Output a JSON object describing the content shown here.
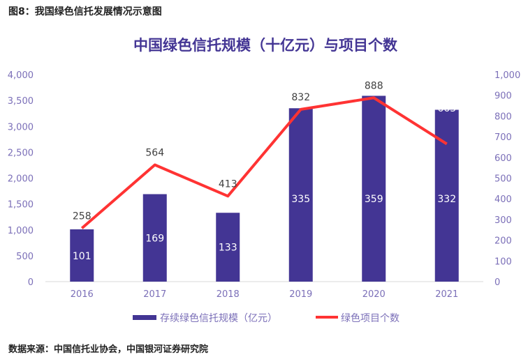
{
  "figure_title": "图8：我国绿色信托发展情况示意图",
  "source": "数据来源：中国信托业协会，中国银河证券研究院",
  "chart_data": {
    "type": "bar+line",
    "title": "中国绿色信托规模（十亿元）与项目个数",
    "categories": [
      "2016",
      "2017",
      "2018",
      "2019",
      "2020",
      "2021"
    ],
    "series": [
      {
        "name": "存续绿色信托规模（亿元）",
        "type": "bar",
        "axis": "left",
        "values": [
          1010,
          1690,
          1330,
          3350,
          3590,
          3320
        ],
        "labels": [
          "101",
          "169",
          "133",
          "335",
          "359",
          "332"
        ],
        "color": "#433594"
      },
      {
        "name": "绿色项目个数",
        "type": "line",
        "axis": "right",
        "values": [
          258,
          564,
          413,
          832,
          888,
          665
        ],
        "labels": [
          "258",
          "564",
          "413",
          "832",
          "888",
          "665"
        ],
        "color": "#ff3333"
      }
    ],
    "y_left": {
      "range": [
        0,
        4000
      ],
      "ticks": [
        "0",
        "500",
        "1,000",
        "1,500",
        "2,000",
        "2,500",
        "3,000",
        "3,500",
        "4,000"
      ]
    },
    "y_right": {
      "range": [
        0,
        1000
      ],
      "ticks": [
        "0",
        "100",
        "200",
        "300",
        "400",
        "500",
        "600",
        "700",
        "800",
        "900",
        "1,000"
      ]
    },
    "grid": false,
    "legend": "bottom",
    "axis_text_color": "#7b6fb8",
    "title_color": "#433594"
  }
}
